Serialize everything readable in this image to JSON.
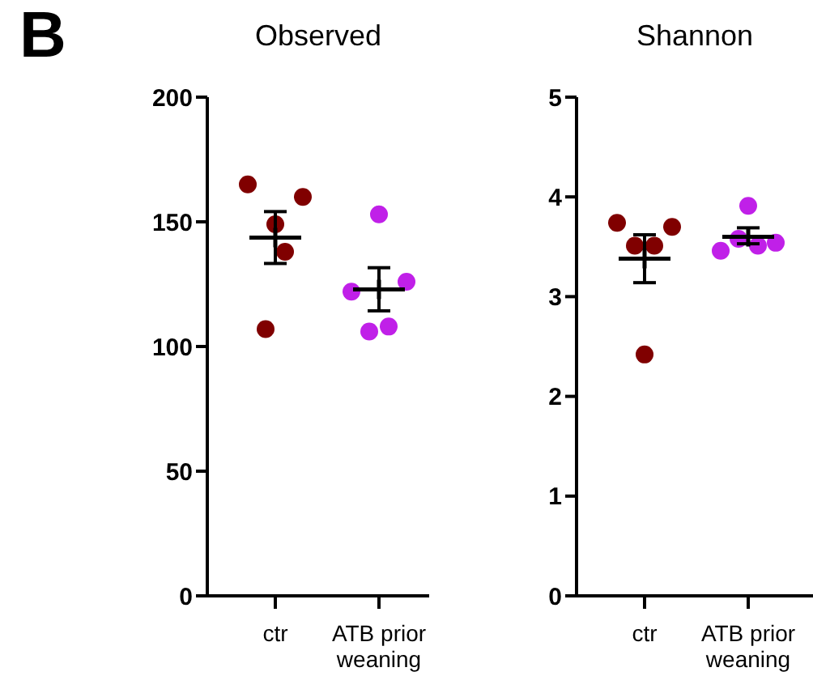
{
  "chart_data": [
    {
      "type": "scatter",
      "title": "Observed",
      "annotations": [
        "B"
      ],
      "categories": [
        "ctr",
        "ATB prior weaning"
      ],
      "ylim": [
        0,
        200
      ],
      "yticks": [
        0,
        50,
        100,
        150,
        200
      ],
      "grid": false,
      "legend": false,
      "marker": "circle",
      "series": [
        {
          "color": "#800000",
          "x": [
            "ctr",
            "ctr",
            "ctr",
            "ctr",
            "ctr"
          ],
          "values": [
            149,
            165,
            160,
            107,
            138
          ]
        },
        {
          "color": "#c020e8",
          "x": [
            "ATB prior weaning",
            "ATB prior weaning",
            "ATB prior weaning",
            "ATB prior weaning",
            "ATB prior weaning"
          ],
          "values": [
            153,
            122,
            126,
            106,
            108
          ]
        },
        {
          "color": "#000000",
          "marker": "cross",
          "x": [
            "ctr",
            "ATB prior weaning"
          ],
          "values": [
            143.7,
            122.9
          ],
          "errors": [
            [
              133.3,
              154.1
            ],
            [
              114.3,
              131.6
            ]
          ]
        }
      ]
    },
    {
      "type": "scatter",
      "title": "Shannon",
      "categories": [
        "ctr",
        "ATB prior weaning"
      ],
      "ylim": [
        0,
        5
      ],
      "yticks": [
        0,
        1,
        2,
        3,
        4,
        5
      ],
      "grid": false,
      "legend": false,
      "marker": "circle",
      "series": [
        {
          "color": "#800000",
          "x": [
            "ctr",
            "ctr",
            "ctr",
            "ctr",
            "ctr"
          ],
          "values": [
            2.42,
            3.74,
            3.7,
            3.51,
            3.51
          ]
        },
        {
          "color": "#c020e8",
          "x": [
            "ATB prior weaning",
            "ATB prior weaning",
            "ATB prior weaning",
            "ATB prior weaning",
            "ATB prior weaning"
          ],
          "values": [
            3.91,
            3.46,
            3.54,
            3.58,
            3.51
          ]
        },
        {
          "color": "#000000",
          "marker": "cross",
          "x": [
            "ctr",
            "ATB prior weaning"
          ],
          "values": [
            3.38,
            3.6
          ],
          "errors": [
            [
              3.14,
              3.62
            ],
            [
              3.53,
              3.69
            ]
          ]
        }
      ]
    }
  ]
}
